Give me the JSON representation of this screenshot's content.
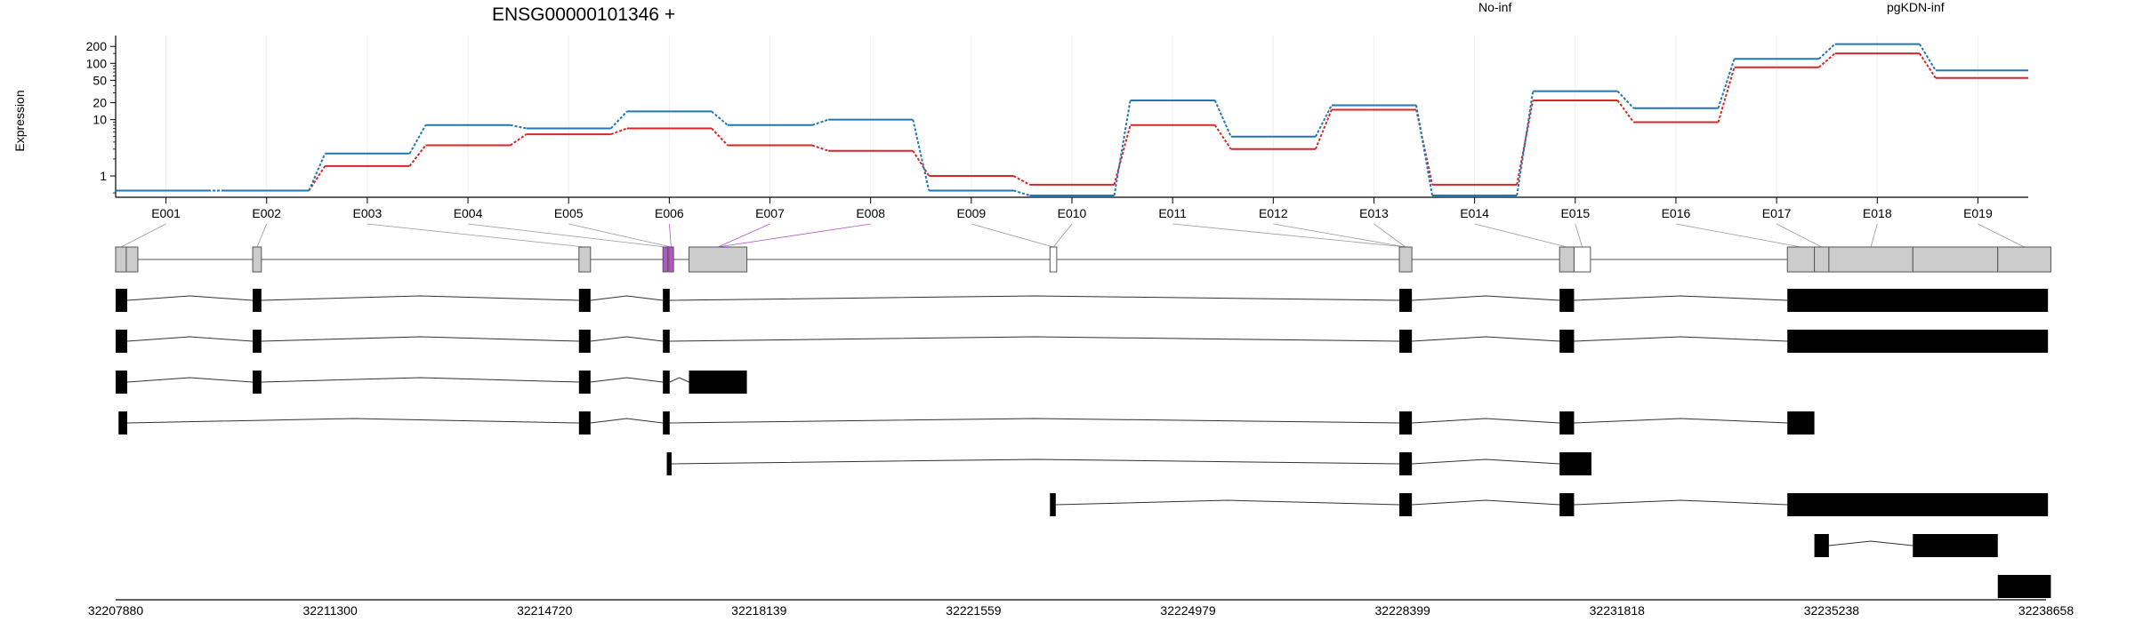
{
  "chart_data": {
    "type": "line",
    "title": "ENSG00000101346 +",
    "ylabel": "Expression",
    "xlabel": "",
    "y_scale": "log",
    "y_ticks": [
      "1",
      "10",
      "20",
      "50",
      "100",
      "200"
    ],
    "ylim": [
      0.45,
      260
    ],
    "categories": [
      "E001",
      "E002",
      "E003",
      "E004",
      "E005",
      "E006",
      "E007",
      "E008",
      "E009",
      "E010",
      "E011",
      "E012",
      "E013",
      "E014",
      "E015",
      "E016",
      "E017",
      "E018",
      "E019"
    ],
    "series": [
      {
        "name": "No-inf",
        "color": "#d62728",
        "values": [
          0.55,
          0.55,
          1.5,
          3.5,
          5.5,
          7.0,
          3.5,
          2.8,
          1.0,
          0.7,
          8.0,
          3.0,
          15.0,
          0.7,
          22.0,
          9.0,
          85.0,
          150.0,
          55.0
        ]
      },
      {
        "name": "pgKDN-inf",
        "color": "#1f77b4",
        "values": [
          0.55,
          0.55,
          2.5,
          8.0,
          7.0,
          14.0,
          8.0,
          10.0,
          0.55,
          0.45,
          22.0,
          5.0,
          18.0,
          0.45,
          32.0,
          16.0,
          120.0,
          220.0,
          75.0
        ]
      }
    ],
    "grid": "vertical-light",
    "legend": "top"
  },
  "gene_model": {
    "coordinate_ticks": [
      "32207880",
      "32211300",
      "32214720",
      "32218139",
      "32221559",
      "32224979",
      "32228399",
      "32231818",
      "32235238",
      "32238658"
    ],
    "highlight_color": "#b455c8",
    "exon_color": "#cccccc",
    "transcript_color": "#000000"
  }
}
